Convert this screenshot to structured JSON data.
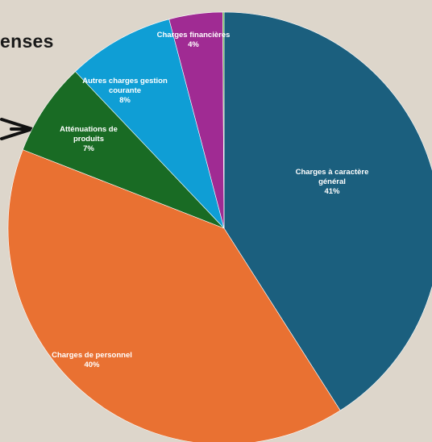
{
  "heading_fragment": "enses",
  "chart_data": {
    "type": "pie",
    "title": "",
    "start_angle_deg": 0,
    "direction": "clockwise",
    "slices": [
      {
        "label": "Charges à caractère général",
        "lines": [
          "Charges à caractère",
          "général"
        ],
        "value": 41,
        "display": "41%",
        "color": "#1b5f7e"
      },
      {
        "label": "Charges de personnel",
        "lines": [
          "Charges de personnel"
        ],
        "value": 40,
        "display": "40%",
        "color": "#e97132"
      },
      {
        "label": "Atténuations de produits",
        "lines": [
          "Atténuations de",
          "produits"
        ],
        "value": 7,
        "display": "7%",
        "color": "#196b24"
      },
      {
        "label": "Autres charges gestion courante",
        "lines": [
          "Autres charges gestion",
          "courante"
        ],
        "value": 8,
        "display": "8%",
        "color": "#0f9ed5"
      },
      {
        "label": "Charges financières",
        "lines": [
          "Charges financières"
        ],
        "value": 4,
        "display": "4%",
        "color": "#a02b93"
      },
      {
        "label": "",
        "lines": [],
        "value": 0.1,
        "display": "",
        "color": "#4ea72e"
      }
    ]
  }
}
